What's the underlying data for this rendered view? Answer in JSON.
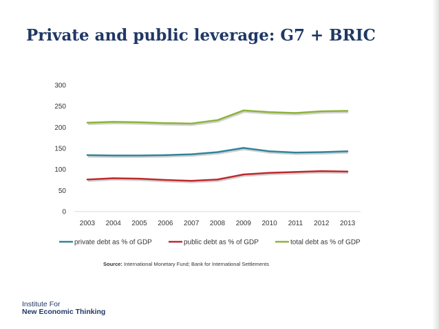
{
  "slide": {
    "title": "Private and public leverage: G7 + BRIC",
    "source_label": "Source:",
    "source_text": "International Monetary Fund; Bank for International Settlements",
    "logo_line1": "Institute For",
    "logo_line2": "New Economic Thinking"
  },
  "colors": {
    "title": "#1f3864",
    "private": "#31849b",
    "public": "#c0282d",
    "total": "#8db33a"
  },
  "chart_data": {
    "type": "line",
    "title": "",
    "xlabel": "",
    "ylabel": "",
    "x": [
      "2003",
      "2004",
      "2005",
      "2006",
      "2007",
      "2008",
      "2009",
      "2010",
      "2011",
      "2012",
      "2013"
    ],
    "ylim": [
      0,
      300
    ],
    "yticks": [
      0,
      50,
      100,
      150,
      200,
      250,
      300
    ],
    "grid": false,
    "legend_position": "bottom",
    "series": [
      {
        "name": "private debt as % of GDP",
        "color": "#31849b",
        "values": [
          134,
          133,
          133,
          134,
          136,
          141,
          151,
          143,
          140,
          141,
          143
        ]
      },
      {
        "name": "public debt as % of GDP",
        "color": "#c0282d",
        "values": [
          76,
          79,
          78,
          75,
          73,
          76,
          88,
          92,
          94,
          96,
          95
        ]
      },
      {
        "name": "total debt as % of GDP",
        "color": "#8db33a",
        "values": [
          211,
          213,
          212,
          210,
          209,
          217,
          240,
          236,
          234,
          238,
          239
        ]
      }
    ]
  }
}
